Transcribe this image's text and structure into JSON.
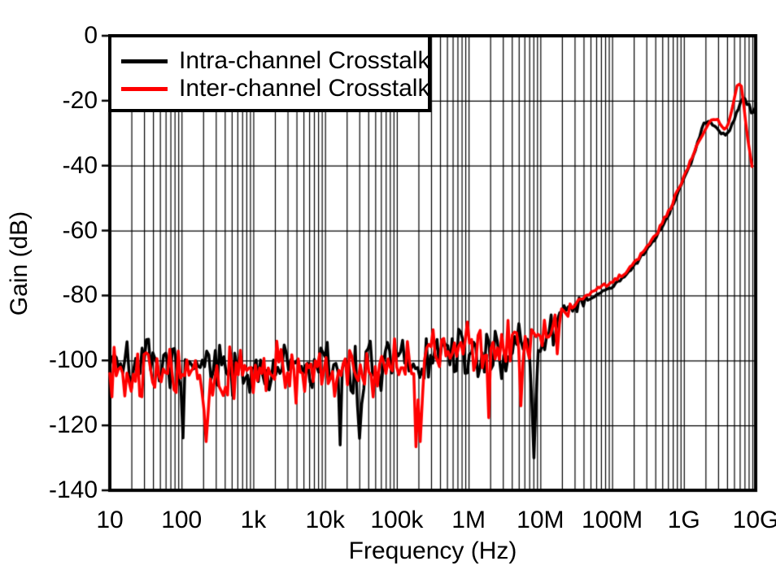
{
  "chart_data": {
    "type": "line",
    "title": "",
    "xlabel": "Frequency (Hz)",
    "ylabel": "Gain (dB)",
    "x_scale": "log",
    "xlim_log10": [
      1,
      10
    ],
    "ylim": [
      -140,
      0
    ],
    "ytick_step": 20,
    "xtick_labels": [
      "10",
      "100",
      "1k",
      "10k",
      "100k",
      "1M",
      "10M",
      "100M",
      "1G",
      "10G"
    ],
    "ytick_labels": [
      "0",
      "-20",
      "-40",
      "-60",
      "-80",
      "-100",
      "-120",
      "-140"
    ],
    "grid": {
      "vertical_minor_log": true,
      "horizontal_major": true,
      "color": "#000000"
    },
    "axis_color": "#000000",
    "background": "#ffffff",
    "legend": {
      "position": "top-left"
    },
    "series": [
      {
        "name": "Intra-channel Crosstalk",
        "color": "#000000",
        "seed": 7,
        "points_per_plot": 300,
        "start_logf": 1.0,
        "end_logf": 10.0,
        "noise": {
          "sigma": 12,
          "clamp_up": 11,
          "tail_prob": 0.035,
          "tail_min": 10,
          "tail_extra": 15,
          "full_until_logf": 7.05,
          "fade_to_logf": 7.75,
          "residual": 0.07
        },
        "backbone": [
          [
            1,
            -98
          ],
          [
            1.3,
            -101
          ],
          [
            2,
            -103
          ],
          [
            2.5,
            -104
          ],
          [
            3,
            -102
          ],
          [
            3.5,
            -102
          ],
          [
            4,
            -102
          ],
          [
            4.5,
            -103
          ],
          [
            5,
            -101
          ],
          [
            5.5,
            -99
          ],
          [
            6,
            -99
          ],
          [
            6.3,
            -98
          ],
          [
            6.6,
            -97
          ],
          [
            6.9,
            -94
          ],
          [
            7.1,
            -91
          ],
          [
            7.35,
            -86
          ],
          [
            7.6,
            -82
          ],
          [
            7.8,
            -79.5
          ],
          [
            8,
            -77.5
          ],
          [
            8.2,
            -73.5
          ],
          [
            8.4,
            -68.5
          ],
          [
            8.6,
            -62.5
          ],
          [
            8.8,
            -54.5
          ],
          [
            9,
            -44
          ],
          [
            9.1,
            -39
          ],
          [
            9.2,
            -32.5
          ],
          [
            9.28,
            -27
          ],
          [
            9.35,
            -26.3
          ],
          [
            9.42,
            -27.2
          ],
          [
            9.5,
            -29.5
          ],
          [
            9.57,
            -30.8
          ],
          [
            9.63,
            -29.3
          ],
          [
            9.7,
            -25.5
          ],
          [
            9.78,
            -21
          ],
          [
            9.83,
            -18.6
          ],
          [
            9.87,
            -20.6
          ],
          [
            9.91,
            -21.2
          ],
          [
            9.95,
            -24.6
          ],
          [
            10,
            -21.8
          ]
        ],
        "spikes": [
          [
            6.92,
            -130
          ],
          [
            4.48,
            -124
          ]
        ]
      },
      {
        "name": "Inter-channel Crosstalk",
        "color": "#ff0000",
        "seed": 13,
        "points_per_plot": 300,
        "start_logf": 1.0,
        "end_logf": 9.95,
        "noise": {
          "sigma": 12,
          "clamp_up": 11,
          "tail_prob": 0.035,
          "tail_min": 10,
          "tail_extra": 15,
          "full_until_logf": 6.95,
          "fade_to_logf": 7.5,
          "residual": 0.07
        },
        "backbone": [
          [
            1,
            -100
          ],
          [
            1.3,
            -103
          ],
          [
            2,
            -105
          ],
          [
            2.5,
            -106
          ],
          [
            3,
            -103
          ],
          [
            3.5,
            -103
          ],
          [
            4,
            -103
          ],
          [
            4.5,
            -103
          ],
          [
            5,
            -101
          ],
          [
            5.5,
            -98
          ],
          [
            6,
            -97
          ],
          [
            6.3,
            -96
          ],
          [
            6.6,
            -95
          ],
          [
            6.9,
            -93
          ],
          [
            7.1,
            -90
          ],
          [
            7.35,
            -85
          ],
          [
            7.6,
            -80.5
          ],
          [
            7.8,
            -78
          ],
          [
            8,
            -76
          ],
          [
            8.2,
            -72.5
          ],
          [
            8.4,
            -67.5
          ],
          [
            8.6,
            -61.5
          ],
          [
            8.8,
            -53.5
          ],
          [
            9,
            -43.5
          ],
          [
            9.1,
            -38
          ],
          [
            9.2,
            -33
          ],
          [
            9.3,
            -28.5
          ],
          [
            9.4,
            -25.8
          ],
          [
            9.46,
            -25.2
          ],
          [
            9.52,
            -27.5
          ],
          [
            9.57,
            -29
          ],
          [
            9.62,
            -27
          ],
          [
            9.68,
            -21.5
          ],
          [
            9.73,
            -16.5
          ],
          [
            9.76,
            -13.8
          ],
          [
            9.8,
            -15.5
          ],
          [
            9.84,
            -22
          ],
          [
            9.88,
            -30
          ],
          [
            9.92,
            -36.5
          ],
          [
            9.95,
            -40.5
          ]
        ],
        "spikes": [
          [
            2.33,
            -125
          ],
          [
            5.32,
            -125
          ]
        ]
      }
    ]
  }
}
